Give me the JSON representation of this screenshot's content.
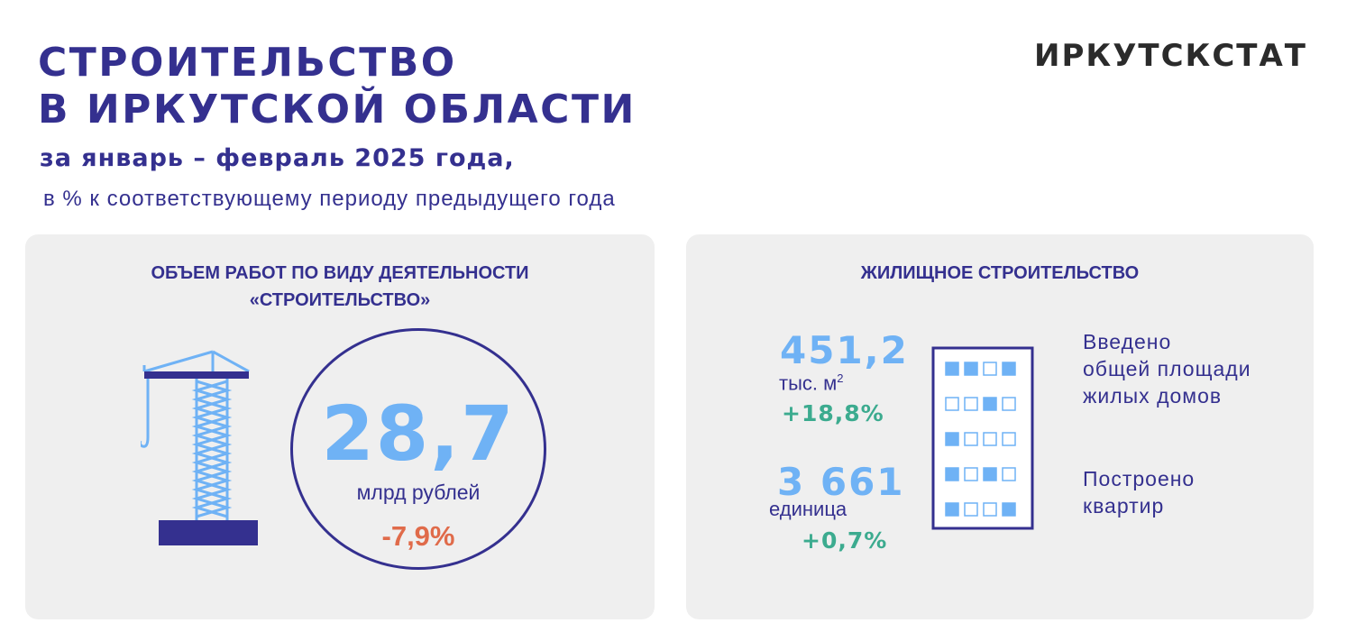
{
  "header": {
    "title_line1": "СТРОИТЕЛЬСТВО",
    "title_line2": "В ИРКУТСКОЙ ОБЛАСТИ",
    "subtitle": "за январь – февраль 2025 года,",
    "caption": "в % к соответствующему периоду предыдущего года",
    "brand": "ИРКУТСКСТАТ"
  },
  "construction": {
    "title_line1": "ОБЪЕМ РАБОТ ПО ВИДУ ДЕЯТЕЛЬНОСТИ",
    "title_line2": "«СТРОИТЕЛЬСТВО»",
    "value": "28,7",
    "unit": "млрд рублей",
    "change": "-7,9%",
    "icon": "crane-icon"
  },
  "housing": {
    "title": "ЖИЛИЩНОЕ СТРОИТЕЛЬСТВО",
    "area": {
      "value": "451,2",
      "unit": "тыс. м",
      "unit_sup": "2",
      "change": "+18,8%",
      "label_lines": [
        "Введено",
        "общей площади",
        "жилых домов"
      ]
    },
    "apartments": {
      "value": "3 661",
      "unit": "единица",
      "change": "+0,7%",
      "label_lines": [
        "Построено",
        "квартир"
      ]
    },
    "icon": "building-icon"
  },
  "colors": {
    "navy": "#34308f",
    "light_blue": "#6fb2f5",
    "green": "#3cab8f",
    "orange": "#e06b4a",
    "panel_bg": "#efefef"
  }
}
